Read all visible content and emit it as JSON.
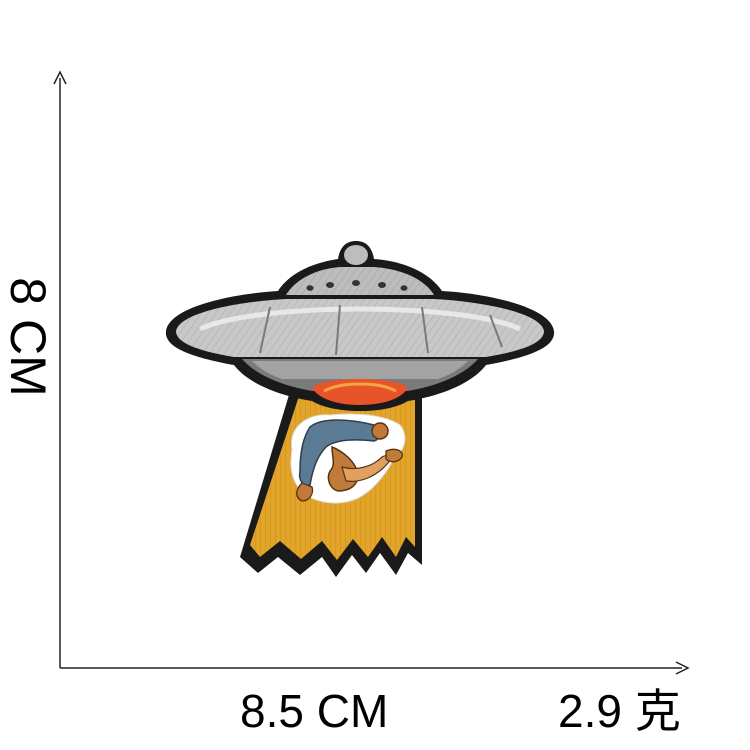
{
  "dimensions": {
    "width_label": "8.5 CM",
    "height_label": "8 CM",
    "weight_label": "2.9 克"
  },
  "product": {
    "icon": "ufo-abduction-patch-icon"
  },
  "colors": {
    "outline": "#1a1a1a",
    "saucer_gray": "#a9a9a9",
    "saucer_light": "#d6d6d6",
    "saucer_dark": "#6f6f6f",
    "beam_yellow": "#e2a52a",
    "light_orange": "#e8542a",
    "figure_blue": "#5b7a93",
    "figure_tan": "#c07a3a"
  }
}
